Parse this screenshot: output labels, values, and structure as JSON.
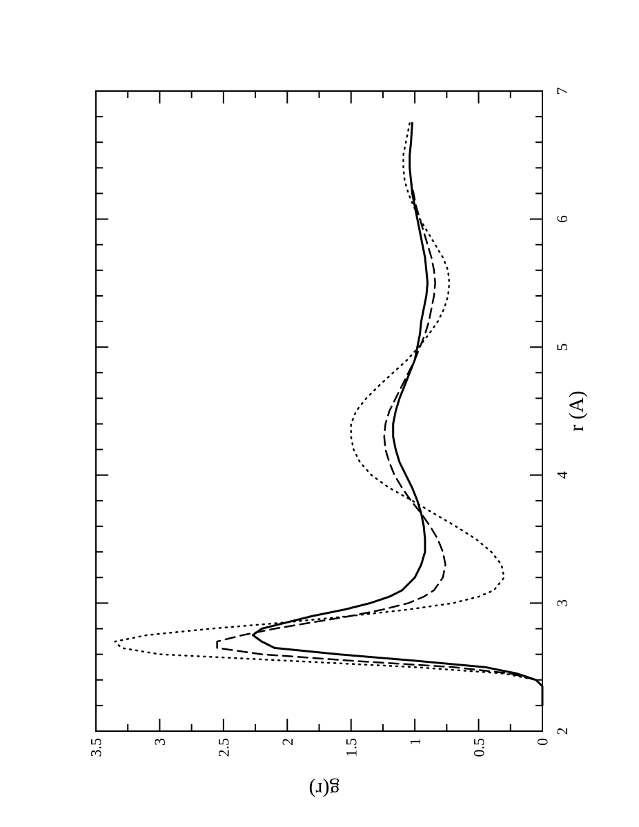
{
  "chart_data": {
    "type": "line",
    "orientation": "rotated 90° counter-clockwise",
    "title": "",
    "xlabel": "r (A)",
    "ylabel": "g(r)",
    "xlim": [
      2,
      7
    ],
    "ylim": [
      0,
      3.5
    ],
    "x_ticks": [
      "2",
      "3",
      "4",
      "5",
      "6",
      "7"
    ],
    "y_ticks": [
      "0",
      "0.5",
      "1",
      "1.5",
      "2",
      "2.5",
      "3",
      "3.5"
    ],
    "grid": false,
    "legend": "none",
    "series": [
      {
        "style": "solid",
        "points": [
          [
            2.2,
            0.0
          ],
          [
            2.35,
            0.0
          ],
          [
            2.4,
            0.05
          ],
          [
            2.45,
            0.2
          ],
          [
            2.5,
            0.45
          ],
          [
            2.55,
            1.0
          ],
          [
            2.6,
            1.6
          ],
          [
            2.65,
            2.1
          ],
          [
            2.7,
            2.2
          ],
          [
            2.75,
            2.27
          ],
          [
            2.8,
            2.2
          ],
          [
            2.85,
            2.0
          ],
          [
            2.9,
            1.8
          ],
          [
            2.95,
            1.55
          ],
          [
            3.0,
            1.35
          ],
          [
            3.05,
            1.2
          ],
          [
            3.1,
            1.1
          ],
          [
            3.2,
            1.0
          ],
          [
            3.3,
            0.95
          ],
          [
            3.4,
            0.92
          ],
          [
            3.5,
            0.92
          ],
          [
            3.6,
            0.93
          ],
          [
            3.7,
            0.95
          ],
          [
            3.8,
            0.98
          ],
          [
            3.9,
            1.02
          ],
          [
            4.0,
            1.07
          ],
          [
            4.1,
            1.12
          ],
          [
            4.2,
            1.15
          ],
          [
            4.3,
            1.17
          ],
          [
            4.4,
            1.17
          ],
          [
            4.5,
            1.15
          ],
          [
            4.6,
            1.12
          ],
          [
            4.7,
            1.08
          ],
          [
            4.8,
            1.04
          ],
          [
            4.9,
            1.0
          ],
          [
            5.0,
            0.98
          ],
          [
            5.1,
            0.96
          ],
          [
            5.2,
            0.95
          ],
          [
            5.3,
            0.93
          ],
          [
            5.4,
            0.91
          ],
          [
            5.5,
            0.9
          ],
          [
            5.6,
            0.91
          ],
          [
            5.7,
            0.92
          ],
          [
            5.8,
            0.94
          ],
          [
            5.9,
            0.96
          ],
          [
            6.0,
            0.98
          ],
          [
            6.1,
            1.0
          ],
          [
            6.2,
            1.02
          ],
          [
            6.3,
            1.03
          ],
          [
            6.4,
            1.04
          ],
          [
            6.5,
            1.04
          ],
          [
            6.6,
            1.03
          ],
          [
            6.75,
            1.02
          ]
        ]
      },
      {
        "style": "dashed",
        "points": [
          [
            2.2,
            0.0
          ],
          [
            2.35,
            0.0
          ],
          [
            2.4,
            0.05
          ],
          [
            2.45,
            0.25
          ],
          [
            2.5,
            0.7
          ],
          [
            2.55,
            1.5
          ],
          [
            2.6,
            2.2
          ],
          [
            2.65,
            2.55
          ],
          [
            2.7,
            2.55
          ],
          [
            2.75,
            2.35
          ],
          [
            2.8,
            2.1
          ],
          [
            2.85,
            1.8
          ],
          [
            2.9,
            1.5
          ],
          [
            2.95,
            1.25
          ],
          [
            3.0,
            1.05
          ],
          [
            3.05,
            0.93
          ],
          [
            3.1,
            0.85
          ],
          [
            3.2,
            0.78
          ],
          [
            3.3,
            0.76
          ],
          [
            3.4,
            0.78
          ],
          [
            3.5,
            0.82
          ],
          [
            3.6,
            0.88
          ],
          [
            3.7,
            0.95
          ],
          [
            3.8,
            1.03
          ],
          [
            3.9,
            1.1
          ],
          [
            4.0,
            1.16
          ],
          [
            4.1,
            1.2
          ],
          [
            4.2,
            1.23
          ],
          [
            4.3,
            1.24
          ],
          [
            4.4,
            1.23
          ],
          [
            4.5,
            1.2
          ],
          [
            4.6,
            1.15
          ],
          [
            4.7,
            1.1
          ],
          [
            4.8,
            1.05
          ],
          [
            4.9,
            1.0
          ],
          [
            5.0,
            0.96
          ],
          [
            5.1,
            0.92
          ],
          [
            5.2,
            0.89
          ],
          [
            5.3,
            0.87
          ],
          [
            5.4,
            0.85
          ],
          [
            5.5,
            0.84
          ],
          [
            5.6,
            0.85
          ],
          [
            5.7,
            0.87
          ],
          [
            5.8,
            0.9
          ],
          [
            5.9,
            0.93
          ],
          [
            6.0,
            0.96
          ],
          [
            6.1,
            0.99
          ],
          [
            6.2,
            1.01
          ],
          [
            6.3,
            1.03
          ],
          [
            6.4,
            1.04
          ],
          [
            6.5,
            1.04
          ],
          [
            6.6,
            1.03
          ],
          [
            6.75,
            1.02
          ]
        ]
      },
      {
        "style": "dotted",
        "points": [
          [
            2.2,
            0.0
          ],
          [
            2.35,
            0.0
          ],
          [
            2.4,
            0.05
          ],
          [
            2.45,
            0.3
          ],
          [
            2.5,
            1.0
          ],
          [
            2.55,
            2.0
          ],
          [
            2.6,
            3.0
          ],
          [
            2.65,
            3.3
          ],
          [
            2.7,
            3.35
          ],
          [
            2.75,
            3.1
          ],
          [
            2.8,
            2.6
          ],
          [
            2.85,
            2.0
          ],
          [
            2.9,
            1.5
          ],
          [
            2.95,
            1.05
          ],
          [
            3.0,
            0.7
          ],
          [
            3.05,
            0.5
          ],
          [
            3.1,
            0.38
          ],
          [
            3.2,
            0.3
          ],
          [
            3.3,
            0.32
          ],
          [
            3.4,
            0.4
          ],
          [
            3.5,
            0.52
          ],
          [
            3.6,
            0.68
          ],
          [
            3.7,
            0.85
          ],
          [
            3.8,
            1.02
          ],
          [
            3.9,
            1.2
          ],
          [
            4.0,
            1.34
          ],
          [
            4.1,
            1.43
          ],
          [
            4.2,
            1.48
          ],
          [
            4.3,
            1.5
          ],
          [
            4.4,
            1.5
          ],
          [
            4.5,
            1.46
          ],
          [
            4.6,
            1.38
          ],
          [
            4.7,
            1.28
          ],
          [
            4.8,
            1.17
          ],
          [
            4.9,
            1.06
          ],
          [
            5.0,
            0.97
          ],
          [
            5.1,
            0.89
          ],
          [
            5.2,
            0.82
          ],
          [
            5.3,
            0.77
          ],
          [
            5.4,
            0.74
          ],
          [
            5.5,
            0.73
          ],
          [
            5.6,
            0.74
          ],
          [
            5.7,
            0.78
          ],
          [
            5.8,
            0.84
          ],
          [
            5.9,
            0.9
          ],
          [
            6.0,
            0.96
          ],
          [
            6.1,
            1.01
          ],
          [
            6.2,
            1.05
          ],
          [
            6.3,
            1.08
          ],
          [
            6.4,
            1.09
          ],
          [
            6.5,
            1.09
          ],
          [
            6.6,
            1.07
          ],
          [
            6.75,
            1.04
          ]
        ]
      }
    ]
  }
}
